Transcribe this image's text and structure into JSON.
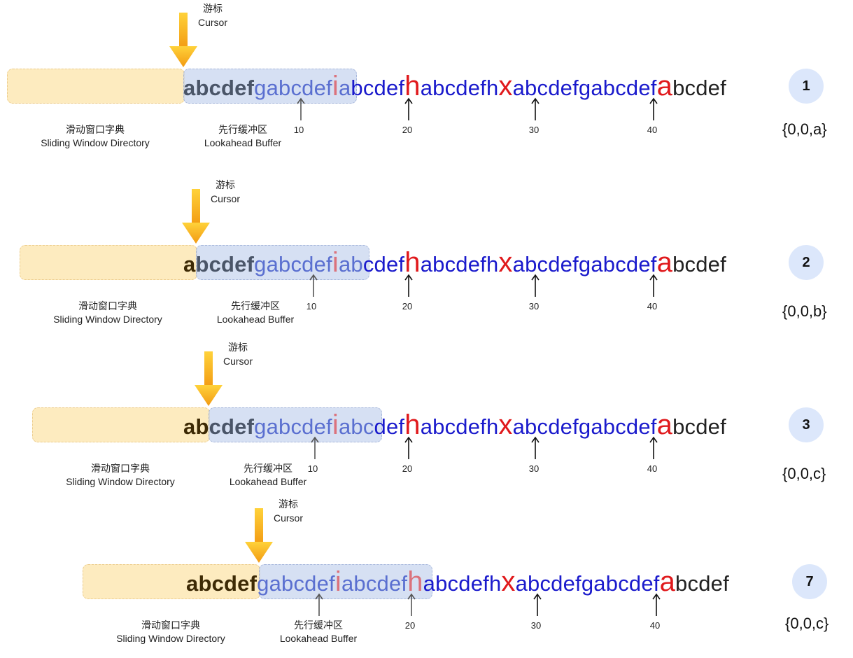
{
  "labels": {
    "cursor_cn": "游标",
    "cursor_en": "Cursor",
    "window_cn": "滑动窗口字典",
    "window_en": "Sliding Window Directory",
    "buffer_cn": "先行缓冲区",
    "buffer_en": "Lookahead Buffer"
  },
  "position_marks": [
    "10",
    "20",
    "30",
    "40"
  ],
  "steps": [
    {
      "badge": "1",
      "output": "{0,0,a}",
      "seq": {
        "dict": "abcdef",
        "buf": "gabcdef",
        "bufred": "i",
        "buf2": "a",
        "rest1": "bcdef",
        "red1": "h",
        "rest2": "abcdefh",
        "red2": "x",
        "rest3": "abcdefgabcdef",
        "red3": "a",
        "tail": "bcdef"
      }
    },
    {
      "badge": "2",
      "output": "{0,0,b}",
      "seq": {
        "done": "a",
        "dict": "bcdef",
        "buf": "gabcdef",
        "bufred": "i",
        "buf2": "ab",
        "rest1": "cdef",
        "red1": "h",
        "rest2": "abcdefh",
        "red2": "x",
        "rest3": "abcdefgabcdef",
        "red3": "a",
        "tail": "bcdef"
      }
    },
    {
      "badge": "3",
      "output": "{0,0,c}",
      "seq": {
        "done": "ab",
        "dict": "cdef",
        "buf": "gabcdef",
        "bufred": "i",
        "buf2": "abc",
        "rest1": "def",
        "red1": "h",
        "rest2": "abcdefh",
        "red2": "x",
        "rest3": "abcdefgabcdef",
        "red3": "a",
        "tail": "bcdef"
      }
    },
    {
      "badge": "7",
      "output": "{0,0,c}",
      "seq": {
        "done": "abcdef",
        "buf": "gabcdef",
        "bufred": "i",
        "buf2": "abcdef",
        "bufred2": "h",
        "rest2": "abcdefh",
        "red2": "x",
        "rest3": "abcdefgabcdef",
        "red3": "a",
        "tail": "bcdef"
      }
    }
  ],
  "colors": {
    "window_fill": "#fde8b4",
    "buffer_fill": "#c9d6ef",
    "cursor_arrow": "#f5a81c",
    "highlight_red": "#e0191c",
    "sequence_blue": "#1a1acc",
    "badge_fill": "#dce7fb"
  }
}
